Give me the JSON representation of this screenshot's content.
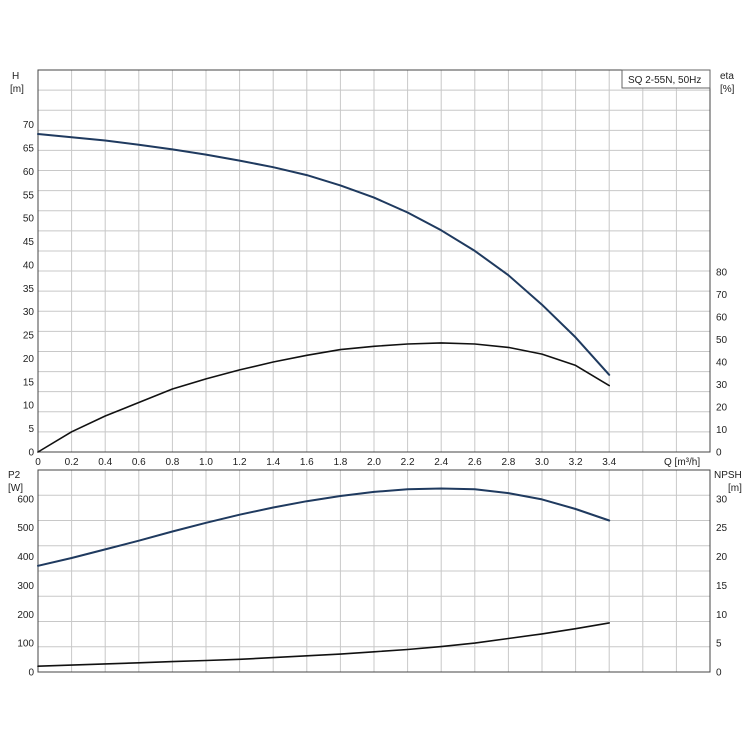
{
  "chart_data": [
    {
      "type": "line",
      "title": "SQ 2-55N, 50Hz",
      "x_axis": {
        "label": "Q [m³/h]",
        "range": [
          0,
          4.0
        ],
        "ticks": [
          0,
          0.2,
          0.4,
          0.6,
          0.8,
          1.0,
          1.2,
          1.4,
          1.6,
          1.8,
          2.0,
          2.2,
          2.4,
          2.6,
          2.8,
          3.0,
          3.2,
          3.4
        ]
      },
      "y_left": {
        "label_top": "H",
        "label_unit": "[m]",
        "range": [
          0,
          70
        ],
        "ticks": [
          0,
          5,
          10,
          15,
          20,
          25,
          30,
          35,
          40,
          45,
          50,
          55,
          60,
          65,
          70
        ]
      },
      "y_right": {
        "label_top": "eta",
        "label_unit": "[%]",
        "range": [
          0,
          80
        ],
        "ticks": [
          0,
          10,
          20,
          30,
          40,
          50,
          60,
          70,
          80
        ]
      },
      "grid": true,
      "series": [
        {
          "axis": "left",
          "color": "#1f3a5f",
          "x": [
            0,
            0.2,
            0.4,
            0.6,
            0.8,
            1.0,
            1.2,
            1.4,
            1.6,
            1.8,
            2.0,
            2.2,
            2.4,
            2.6,
            2.8,
            3.0,
            3.2,
            3.4
          ],
          "y": [
            68,
            67.3,
            66.6,
            65.7,
            64.7,
            63.6,
            62.3,
            60.9,
            59.2,
            57.0,
            54.4,
            51.2,
            47.4,
            43.0,
            37.8,
            31.5,
            24.5,
            16.5
          ]
        },
        {
          "axis": "right",
          "color": "#111111",
          "x": [
            0,
            0.2,
            0.4,
            0.6,
            0.8,
            1.0,
            1.2,
            1.4,
            1.6,
            1.8,
            2.0,
            2.2,
            2.4,
            2.6,
            2.8,
            3.0,
            3.2,
            3.4
          ],
          "y": [
            0,
            9,
            16,
            22,
            28,
            32.5,
            36.5,
            40,
            43,
            45.5,
            47,
            48,
            48.5,
            48,
            46.5,
            43.5,
            38.5,
            29.5
          ]
        }
      ]
    },
    {
      "type": "line",
      "x_axis": {
        "label": "",
        "range": [
          0,
          4.0
        ],
        "ticks": []
      },
      "y_left": {
        "label_top": "P2",
        "label_unit": "[W]",
        "range": [
          0,
          700
        ],
        "ticks": [
          0,
          100,
          200,
          300,
          400,
          500,
          600
        ]
      },
      "y_right": {
        "label_top": "NPSH",
        "label_unit": "[m]",
        "range": [
          0,
          35
        ],
        "ticks": [
          0,
          5,
          10,
          15,
          20,
          25,
          30
        ]
      },
      "grid": true,
      "series": [
        {
          "axis": "left",
          "color": "#1f3a5f",
          "x": [
            0,
            0.2,
            0.4,
            0.6,
            0.8,
            1.0,
            1.2,
            1.4,
            1.6,
            1.8,
            2.0,
            2.2,
            2.4,
            2.6,
            2.8,
            3.0,
            3.2,
            3.4
          ],
          "y": [
            368,
            395,
            425,
            455,
            487,
            517,
            545,
            570,
            592,
            610,
            624,
            633,
            636,
            633,
            620,
            598,
            565,
            525
          ]
        },
        {
          "axis": "right",
          "color": "#111111",
          "x": [
            0,
            0.2,
            0.4,
            0.6,
            0.8,
            1.0,
            1.2,
            1.4,
            1.6,
            1.8,
            2.0,
            2.2,
            2.4,
            2.6,
            2.8,
            3.0,
            3.2,
            3.4
          ],
          "y": [
            1.0,
            1.2,
            1.4,
            1.6,
            1.8,
            2.0,
            2.2,
            2.5,
            2.8,
            3.1,
            3.5,
            3.9,
            4.4,
            5.0,
            5.8,
            6.6,
            7.5,
            8.5
          ]
        }
      ]
    }
  ]
}
